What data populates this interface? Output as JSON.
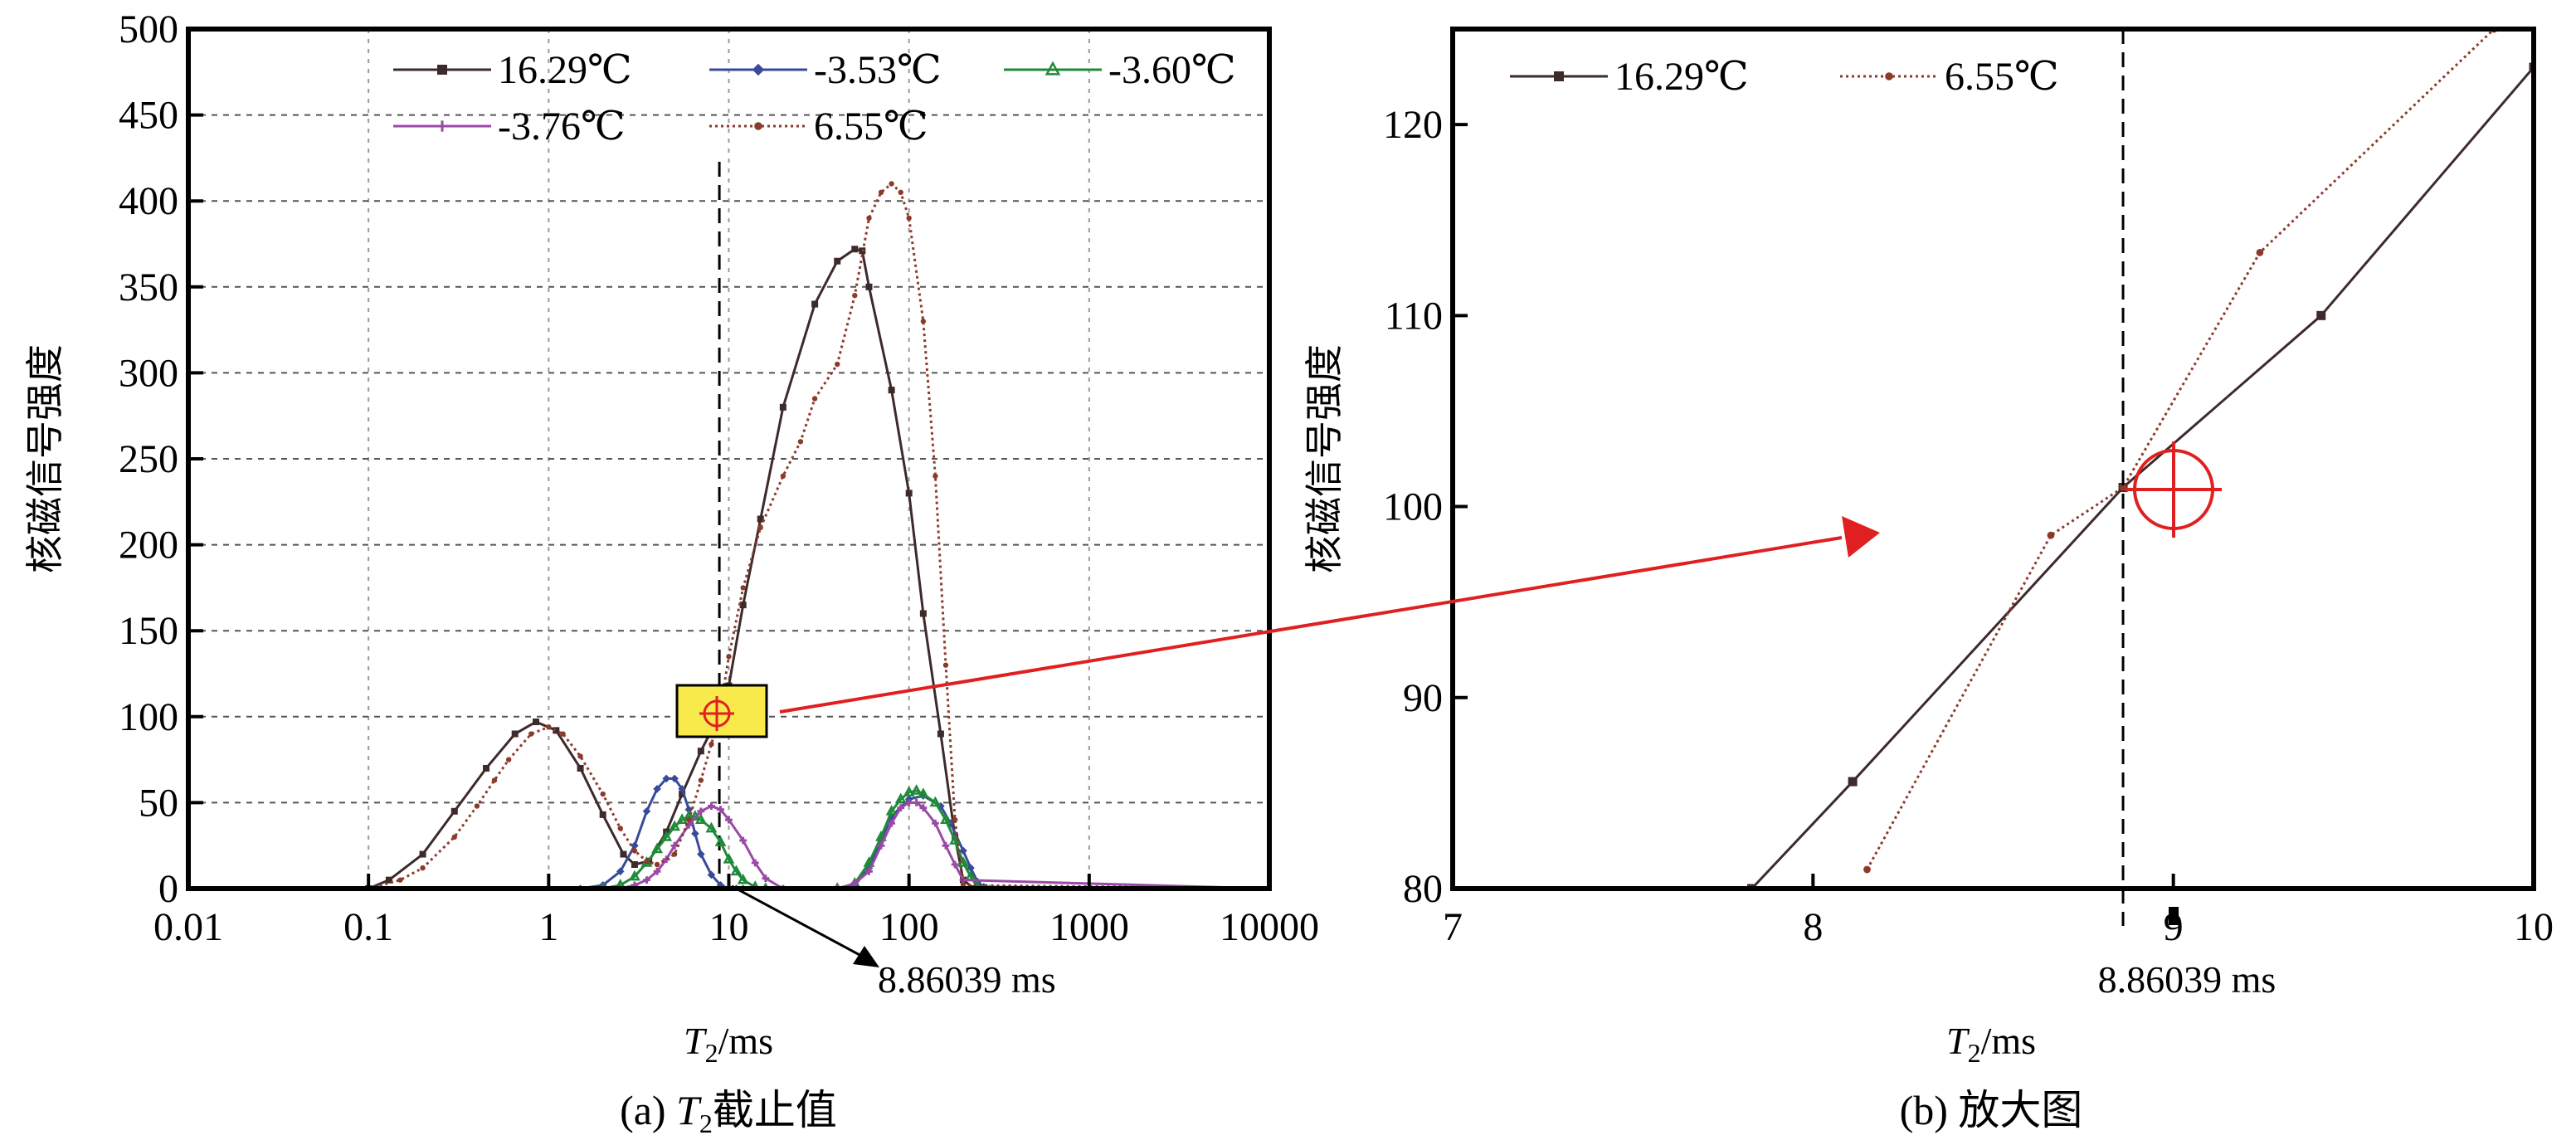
{
  "chart_data": [
    {
      "panel": "a",
      "type": "line",
      "caption": {
        "prefix": "(a) ",
        "italic": "T",
        "sub": "2",
        "suffix": "截止值"
      },
      "xlabel": {
        "italic": "T",
        "sub": "2",
        "suffix": "/ms"
      },
      "ylabel": "核磁信号强度",
      "xscale": "log",
      "xlim": [
        0.01,
        10000
      ],
      "ylim": [
        0,
        500
      ],
      "xticks": [
        0.01,
        0.1,
        1,
        10,
        100,
        1000,
        10000
      ],
      "xtick_labels": [
        "0.01",
        "0.1",
        "1",
        "10",
        "100",
        "1000",
        "10000"
      ],
      "yticks": [
        0,
        50,
        100,
        150,
        200,
        250,
        300,
        350,
        400,
        450,
        500
      ],
      "ytick_labels": [
        "0",
        "50",
        "100",
        "150",
        "200",
        "250",
        "300",
        "350",
        "400",
        "450",
        "500"
      ],
      "grid": true,
      "legend_position": "top",
      "series": [
        {
          "name": "16.29℃",
          "color": "#3d2a2a",
          "marker": "square",
          "dash": "solid",
          "x": [
            0.01,
            0.1,
            0.13,
            0.2,
            0.3,
            0.45,
            0.65,
            0.85,
            1.1,
            1.5,
            2.0,
            2.6,
            3.0,
            3.6,
            4.5,
            5.5,
            7.0,
            8.86,
            10,
            12,
            15,
            20,
            30,
            40,
            50,
            55,
            60,
            80,
            100,
            120,
            150,
            180,
            200,
            230
          ],
          "y": [
            0,
            0,
            5,
            20,
            45,
            70,
            90,
            97,
            92,
            70,
            43,
            20,
            14,
            16,
            33,
            55,
            80,
            101,
            118,
            165,
            215,
            280,
            340,
            365,
            372,
            371,
            350,
            290,
            230,
            160,
            90,
            30,
            5,
            0
          ]
        },
        {
          "name": "-3.53℃",
          "color": "#3a4a9a",
          "marker": "diamond",
          "dash": "solid",
          "x": [
            0.01,
            1.5,
            2.0,
            2.5,
            3.0,
            3.5,
            4.0,
            4.5,
            5.0,
            5.5,
            6.0,
            6.5,
            7.0,
            8.0,
            9.0,
            10,
            11,
            12,
            40,
            50,
            60,
            70,
            80,
            100,
            120,
            150,
            170,
            200,
            220,
            240,
            260,
            280,
            10000
          ],
          "y": [
            0,
            0,
            2,
            10,
            25,
            45,
            58,
            64,
            64,
            58,
            46,
            32,
            20,
            8,
            2,
            0,
            0,
            0,
            0,
            2,
            12,
            28,
            42,
            52,
            54,
            48,
            38,
            22,
            12,
            4,
            1,
            0,
            0
          ]
        },
        {
          "name": "-3.60℃",
          "color": "#1f8a3a",
          "marker": "triangle",
          "dash": "solid",
          "x": [
            0.01,
            2.0,
            2.5,
            3.0,
            3.5,
            4.0,
            4.5,
            5.0,
            5.5,
            6.0,
            6.5,
            7.0,
            8.0,
            9.0,
            10,
            11,
            12,
            14,
            16,
            40,
            50,
            60,
            70,
            80,
            90,
            100,
            110,
            120,
            140,
            160,
            180,
            200,
            220,
            240,
            10000
          ],
          "y": [
            0,
            0,
            2,
            7,
            15,
            23,
            30,
            36,
            40,
            42,
            42,
            40,
            35,
            27,
            17,
            10,
            5,
            1,
            0,
            0,
            3,
            15,
            30,
            45,
            52,
            56,
            57,
            55,
            50,
            40,
            28,
            15,
            7,
            1,
            0
          ]
        },
        {
          "name": "-3.76℃",
          "color": "#9a4aa6",
          "marker": "plus",
          "dash": "solid",
          "x": [
            0.01,
            2.5,
            3.0,
            3.5,
            4.0,
            4.5,
            5.0,
            6.0,
            7.0,
            8.0,
            9.0,
            10,
            12,
            14,
            16,
            20,
            40,
            50,
            60,
            70,
            80,
            90,
            100,
            110,
            120,
            140,
            160,
            180,
            200,
            10000
          ],
          "y": [
            0,
            0,
            2,
            5,
            10,
            17,
            25,
            37,
            45,
            48,
            46,
            40,
            28,
            15,
            6,
            0,
            0,
            3,
            10,
            25,
            38,
            47,
            50,
            50,
            47,
            38,
            25,
            14,
            5,
            0
          ]
        },
        {
          "name": "6.55℃",
          "color": "#8c3a2a",
          "marker": "dot",
          "dash": "dotted",
          "x": [
            0.01,
            0.1,
            0.15,
            0.2,
            0.3,
            0.4,
            0.5,
            0.6,
            0.8,
            1.0,
            1.2,
            1.5,
            2.0,
            2.5,
            3.0,
            3.5,
            4.0,
            5.0,
            6.0,
            7.0,
            8.0,
            8.86,
            10,
            12,
            15,
            20,
            25,
            30,
            40,
            50,
            60,
            70,
            80,
            90,
            100,
            120,
            140,
            160,
            180,
            200,
            10000
          ],
          "y": [
            0,
            0,
            5,
            12,
            30,
            48,
            63,
            75,
            90,
            94,
            90,
            77,
            55,
            35,
            22,
            16,
            14,
            20,
            40,
            63,
            84,
            101,
            135,
            175,
            210,
            240,
            260,
            285,
            305,
            345,
            390,
            405,
            410,
            405,
            390,
            330,
            240,
            130,
            40,
            2,
            0
          ]
        }
      ],
      "annotations": {
        "cutoff_label": "8.86039 ms",
        "cutoff_x": 8.86039,
        "crossing_y": 101
      }
    },
    {
      "panel": "b",
      "type": "line",
      "caption": {
        "prefix": "(b) ",
        "italic": "",
        "sub": "",
        "suffix": "放大图"
      },
      "xlabel": {
        "italic": "T",
        "sub": "2",
        "suffix": "/ms"
      },
      "ylabel": "核磁信号强度",
      "xscale": "linear",
      "xlim": [
        7,
        10
      ],
      "ylim": [
        80,
        125
      ],
      "xticks": [
        7,
        8,
        9,
        10
      ],
      "xtick_labels": [
        "7",
        "8",
        "9",
        "10"
      ],
      "yticks": [
        80,
        90,
        100,
        110,
        120
      ],
      "ytick_labels": [
        "80",
        "90",
        "100",
        "110",
        "120"
      ],
      "grid": false,
      "legend_position": "top-left",
      "series": [
        {
          "name": "16.29℃",
          "color": "#3d2a2a",
          "marker": "square",
          "dash": "solid",
          "x": [
            7.83,
            8.11,
            8.86039,
            9.41,
            10.0
          ],
          "y": [
            80,
            85.6,
            101,
            110,
            123
          ]
        },
        {
          "name": "6.55℃",
          "color": "#8c3a2a",
          "marker": "dot",
          "dash": "dotted",
          "x": [
            8.15,
            8.66,
            8.86039,
            9.24,
            9.89
          ],
          "y": [
            81,
            98.5,
            101,
            113.3,
            125
          ]
        }
      ],
      "annotations": {
        "cutoff_label": "8.86039 ms",
        "cutoff_x": 8.86039,
        "crossing_y": 101
      }
    }
  ],
  "colors": {
    "highlight_fill": "#f7ea4a",
    "arrow": "#e02020",
    "target_circle": "#e02020"
  }
}
